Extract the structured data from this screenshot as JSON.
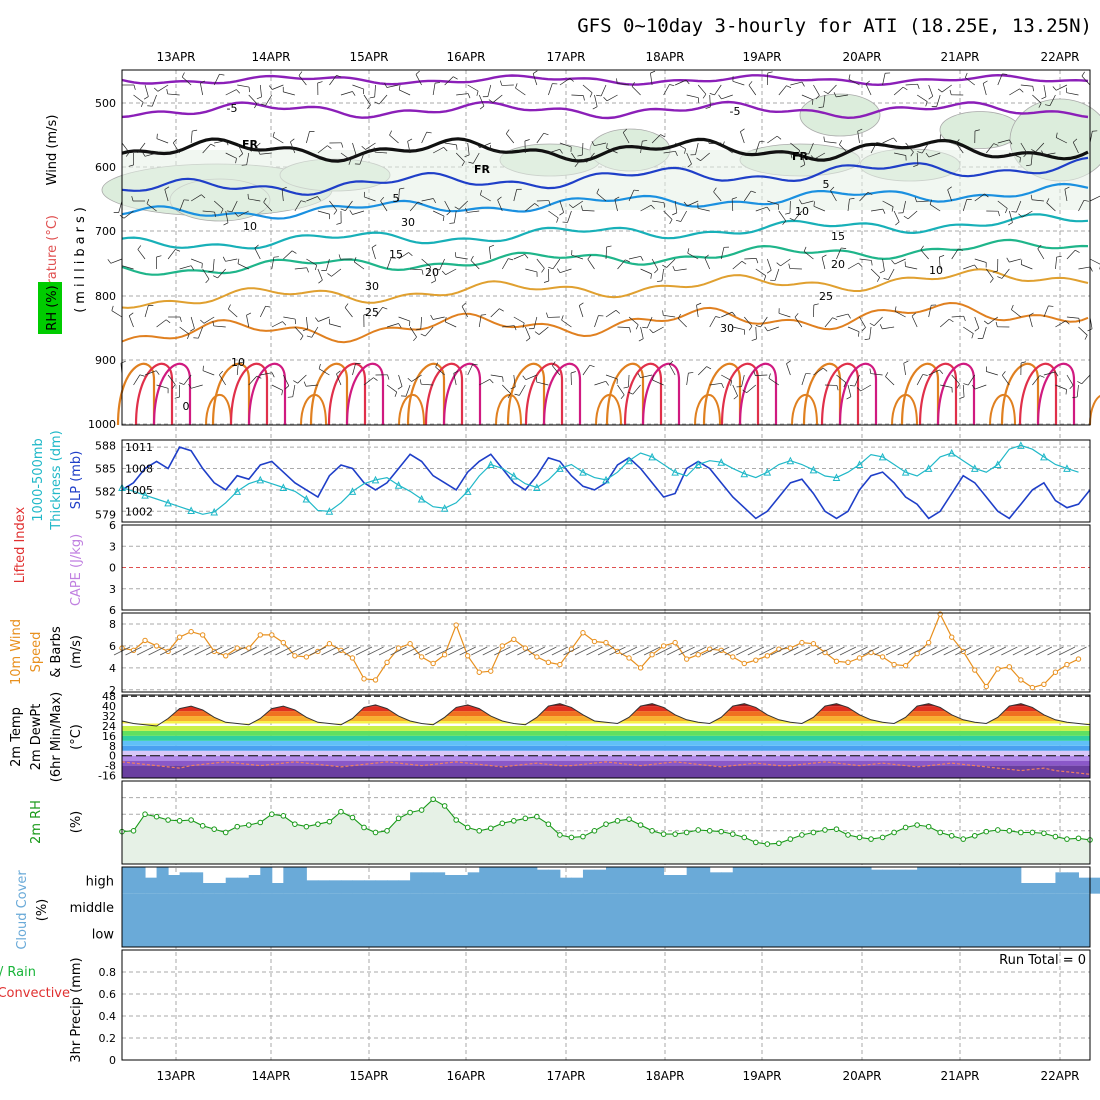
{
  "title": "GFS 0~10day 3-hourly for ATI (18.25E, 13.25N)",
  "dates": [
    "13APR",
    "14APR",
    "15APR",
    "16APR",
    "17APR",
    "18APR",
    "19APR",
    "20APR",
    "21APR",
    "22APR"
  ],
  "colors": {
    "temp_label": "#e05050",
    "rh_label": "#00cc00",
    "thickness": "#20b8c8",
    "slp": "#1f3fc8",
    "cape": "#c080e0",
    "lifted": "#e03030",
    "wind10m": "#e8901e",
    "rh2m": "#1a9a1a",
    "cloud": "#6aaad8",
    "precip_total": "#19b43a",
    "precip_conv": "#e03030"
  },
  "panels": {
    "upper": {
      "labels": {
        "wind": "Wind (m/s)",
        "temp": "Temperature (°C)",
        "rh": "RH (%)",
        "axis": "(millibars)"
      },
      "ticks": [
        "500",
        "600",
        "700",
        "800",
        "900",
        "1000"
      ],
      "isotherm_labels": [
        "-5",
        "-5",
        "FR",
        "FR",
        "FR",
        "5",
        "5",
        "10",
        "10",
        "15",
        "15",
        "20",
        "20",
        "25",
        "25",
        "30",
        "30",
        "30",
        "10",
        "10",
        "0"
      ]
    },
    "slp": {
      "labels": {
        "thickness": "1000-500mb",
        "thickness2": "Thickness (dm)",
        "slp": "SLP (mb)"
      },
      "ticks_left": [
        "588",
        "585",
        "582",
        "579"
      ],
      "ticks_right": [
        "1011",
        "1008",
        "1005",
        "1002"
      ]
    },
    "cape": {
      "labels": {
        "lifted": "Lifted Index",
        "cape": "CAPE (J/kg)"
      },
      "ticks": [
        "6",
        "3",
        "0",
        "3",
        "6"
      ]
    },
    "wind": {
      "labels": {
        "l1": "10m Wind",
        "l2": "Speed",
        "l3": "& Barbs",
        "unit": "(m/s)"
      },
      "ticks": [
        "8",
        "6",
        "4",
        "2"
      ]
    },
    "temp": {
      "labels": {
        "l1": "2m Temp",
        "l2": "2m DewPt",
        "l3": "(6hr Min/Max)",
        "unit": "(°C)"
      },
      "ticks": [
        "48",
        "40",
        "32",
        "24",
        "16",
        "8",
        "0",
        "-8",
        "-16"
      ]
    },
    "rh2m": {
      "labels": {
        "l1": "2m RH",
        "unit": "(%)"
      }
    },
    "cloud": {
      "labels": {
        "l1": "Cloud Cover",
        "unit": "(%)"
      },
      "levels": [
        "high",
        "middle",
        "low"
      ]
    },
    "precip": {
      "labels": {
        "l1": "Total / Rain",
        "l2": "Convective",
        "l3": "3hr Precip (mm)"
      },
      "ticks": [
        "0.8",
        "0.6",
        "0.4",
        "0.2",
        "0"
      ],
      "run_total": "Run Total = 0"
    }
  },
  "chart_data": [
    {
      "type": "line",
      "name_hint": "slp_and_thickness",
      "x_unit": "3-hourly steps from 12APR 12Z",
      "series": [
        {
          "name": "SLP (mb)",
          "axis": "right",
          "ylim": [
            1000.5,
            1012
          ],
          "values": [
            1005,
            1006,
            1008,
            1009,
            1008,
            1011,
            1010.5,
            1008,
            1006,
            1005,
            1007,
            1006.5,
            1008.5,
            1009,
            1007.5,
            1006,
            1005,
            1004,
            1007,
            1008.5,
            1008,
            1006,
            1005,
            1006,
            1008,
            1010,
            1009,
            1007,
            1006,
            1005,
            1007.5,
            1009,
            1010,
            1008,
            1006,
            1005,
            1007,
            1009.5,
            1009,
            1007,
            1005.5,
            1005,
            1006,
            1008.5,
            1009.5,
            1008,
            1006,
            1004,
            1004.5,
            1008,
            1009,
            1008,
            1006,
            1004,
            1002.5,
            1001,
            1002,
            1004,
            1006,
            1006.5,
            1004.5,
            1002,
            1001,
            1002,
            1005,
            1007,
            1007.5,
            1006,
            1004,
            1003,
            1001,
            1002,
            1004.5,
            1007,
            1006,
            1004,
            1002,
            1001,
            1003,
            1005,
            1006,
            1003.5,
            1002.5,
            1003,
            1005
          ]
        },
        {
          "name": "1000-500mb Thickness (dm)",
          "axis": "left",
          "ylim": [
            578,
            588.7
          ],
          "values": [
            582.5,
            582,
            581.5,
            581,
            580.5,
            580,
            579.5,
            579,
            579.3,
            580.5,
            582,
            583,
            583.5,
            583,
            582.5,
            582,
            581,
            579.5,
            579.4,
            580.5,
            582,
            583,
            583.5,
            583.8,
            582.8,
            582,
            581,
            580,
            579.8,
            580.5,
            582,
            584,
            585.5,
            585,
            584,
            583,
            582.5,
            583.5,
            585,
            585.5,
            584.5,
            583.8,
            583.5,
            584.5,
            586,
            587,
            586.5,
            585.5,
            584.5,
            584,
            585.5,
            586,
            585.8,
            585,
            584.3,
            583.8,
            584.5,
            585.5,
            586,
            585.5,
            584.8,
            584,
            583.8,
            584.5,
            585.5,
            586.8,
            586.5,
            585.5,
            584.5,
            584,
            585,
            586.5,
            587,
            586,
            585,
            584.5,
            585.5,
            587.5,
            588,
            587.5,
            586.5,
            585.5,
            585,
            584.5
          ]
        }
      ]
    },
    {
      "type": "line",
      "name_hint": "wind10m_speed",
      "ylim": [
        1.8,
        9
      ],
      "series": [
        {
          "name": "10m Wind Speed (m/s)",
          "values": [
            5.8,
            5.6,
            6.5,
            6,
            5.5,
            6.8,
            7.3,
            7,
            5.5,
            5.1,
            5.8,
            5.8,
            7,
            7,
            6.3,
            5.1,
            5,
            5.5,
            6.2,
            5.6,
            4.9,
            3,
            2.9,
            4.5,
            5.8,
            6.2,
            5,
            4.4,
            5.2,
            7.9,
            5.1,
            3.6,
            3.7,
            6,
            6.6,
            5.8,
            5,
            4.5,
            4.3,
            5.7,
            7.2,
            6.4,
            6.3,
            5.5,
            4.9,
            4,
            5.2,
            6,
            6.3,
            4.8,
            5.2,
            5.7,
            5.6,
            5,
            4.4,
            4.7,
            5.1,
            5.7,
            5.8,
            6.3,
            6.2,
            5.4,
            4.6,
            4.5,
            4.9,
            5.4,
            5,
            4.3,
            4.2,
            5.3,
            6.3,
            8.9,
            6.8,
            5.5,
            3.8,
            2.3,
            3.9,
            4.1,
            2.9,
            2.2,
            2.5,
            3.6,
            4.3,
            4.8
          ]
        }
      ]
    },
    {
      "type": "line",
      "name_hint": "temperature_2m",
      "ylim": [
        -18,
        49
      ],
      "series": [
        {
          "name": "2m Temp (°C)",
          "values": [
            28,
            26,
            25,
            24,
            30,
            38,
            40,
            37,
            31,
            27,
            26,
            25,
            30,
            38,
            40,
            37,
            31,
            27,
            26,
            25,
            30,
            39,
            41,
            38,
            32,
            28,
            26,
            25,
            31,
            39,
            41,
            38,
            32,
            28,
            26,
            25,
            31,
            40,
            42,
            39,
            33,
            28,
            27,
            26,
            31,
            40,
            42,
            39,
            33,
            29,
            27,
            26,
            31,
            40,
            42,
            39,
            33,
            29,
            27,
            26,
            31,
            40,
            42,
            39,
            33,
            29,
            27,
            26,
            31,
            40,
            42,
            39,
            33,
            29,
            27,
            26,
            31,
            40,
            42,
            39,
            33,
            29,
            27,
            26,
            25
          ]
        },
        {
          "name": "2m DewPt (°C)",
          "values": [
            -5,
            -6,
            -7,
            -8,
            -9,
            -10,
            -8,
            -7,
            -6,
            -5,
            -6,
            -7,
            -8,
            -7,
            -6,
            -5,
            -6,
            -7,
            -8,
            -9,
            -8,
            -7,
            -6,
            -5,
            -6,
            -7,
            -8,
            -7,
            -6,
            -5,
            -6,
            -7,
            -8,
            -9,
            -8,
            -7,
            -6,
            -7,
            -8,
            -8,
            -7,
            -6,
            -5,
            -6,
            -7,
            -8,
            -7,
            -6,
            -5,
            -6,
            -7,
            -8,
            -9,
            -8,
            -7,
            -6,
            -7,
            -8,
            -8,
            -7,
            -6,
            -5,
            -6,
            -7,
            -8,
            -7,
            -6,
            -7,
            -8,
            -9,
            -8,
            -7,
            -6,
            -7,
            -8,
            -9,
            -10,
            -11,
            -12,
            -11,
            -10,
            -12,
            -13,
            -14,
            -15
          ]
        }
      ]
    },
    {
      "type": "area",
      "name_hint": "rh_2m",
      "ylim": [
        0,
        100
      ],
      "series": [
        {
          "name": "2m RH (%)",
          "values": [
            39,
            40,
            60,
            57,
            53,
            52,
            53,
            46,
            42,
            38,
            45,
            47,
            50,
            60,
            58,
            48,
            45,
            48,
            51,
            63,
            56,
            44,
            38,
            40,
            55,
            62,
            65,
            78,
            70,
            53,
            44,
            40,
            43,
            49,
            52,
            55,
            57,
            48,
            35,
            32,
            33,
            40,
            48,
            52,
            54,
            47,
            40,
            36,
            36,
            38,
            41,
            40,
            39,
            36,
            32,
            26,
            24,
            25,
            30,
            35,
            38,
            41,
            42,
            35,
            32,
            30,
            32,
            38,
            44,
            47,
            45,
            38,
            34,
            30,
            34,
            39,
            41,
            40,
            38,
            38,
            37,
            33,
            30,
            31,
            29
          ]
        }
      ]
    },
    {
      "type": "bar",
      "name_hint": "cloud_cover",
      "note": "blue = cloud fraction in high layer; middle and low layers fully blue",
      "ylim": [
        0,
        100
      ],
      "series": [
        {
          "name": "high (%)",
          "values": [
            100,
            100,
            60,
            100,
            70,
            80,
            80,
            40,
            40,
            60,
            60,
            70,
            100,
            40,
            100,
            100,
            50,
            50,
            50,
            50,
            50,
            50,
            50,
            50,
            50,
            80,
            80,
            80,
            70,
            70,
            80,
            100,
            100,
            100,
            100,
            100,
            90,
            90,
            60,
            60,
            90,
            90,
            100,
            100,
            100,
            100,
            100,
            70,
            70,
            100,
            100,
            80,
            80,
            100,
            100,
            100,
            100,
            100,
            100,
            100,
            100,
            100,
            100,
            100,
            100,
            90,
            90,
            90,
            90,
            100,
            100,
            100,
            100,
            100,
            100,
            100,
            100,
            100,
            40,
            40,
            40,
            80,
            80,
            60,
            60
          ]
        },
        {
          "name": "middle (%)",
          "values_fill": 100
        },
        {
          "name": "low (%)",
          "values_fill": 100
        }
      ]
    },
    {
      "type": "bar",
      "name_hint": "precip_3hr",
      "ylim": [
        0,
        1
      ],
      "series": [
        {
          "name": "3hr Precip (mm)",
          "values_fill": 0
        }
      ]
    }
  ]
}
